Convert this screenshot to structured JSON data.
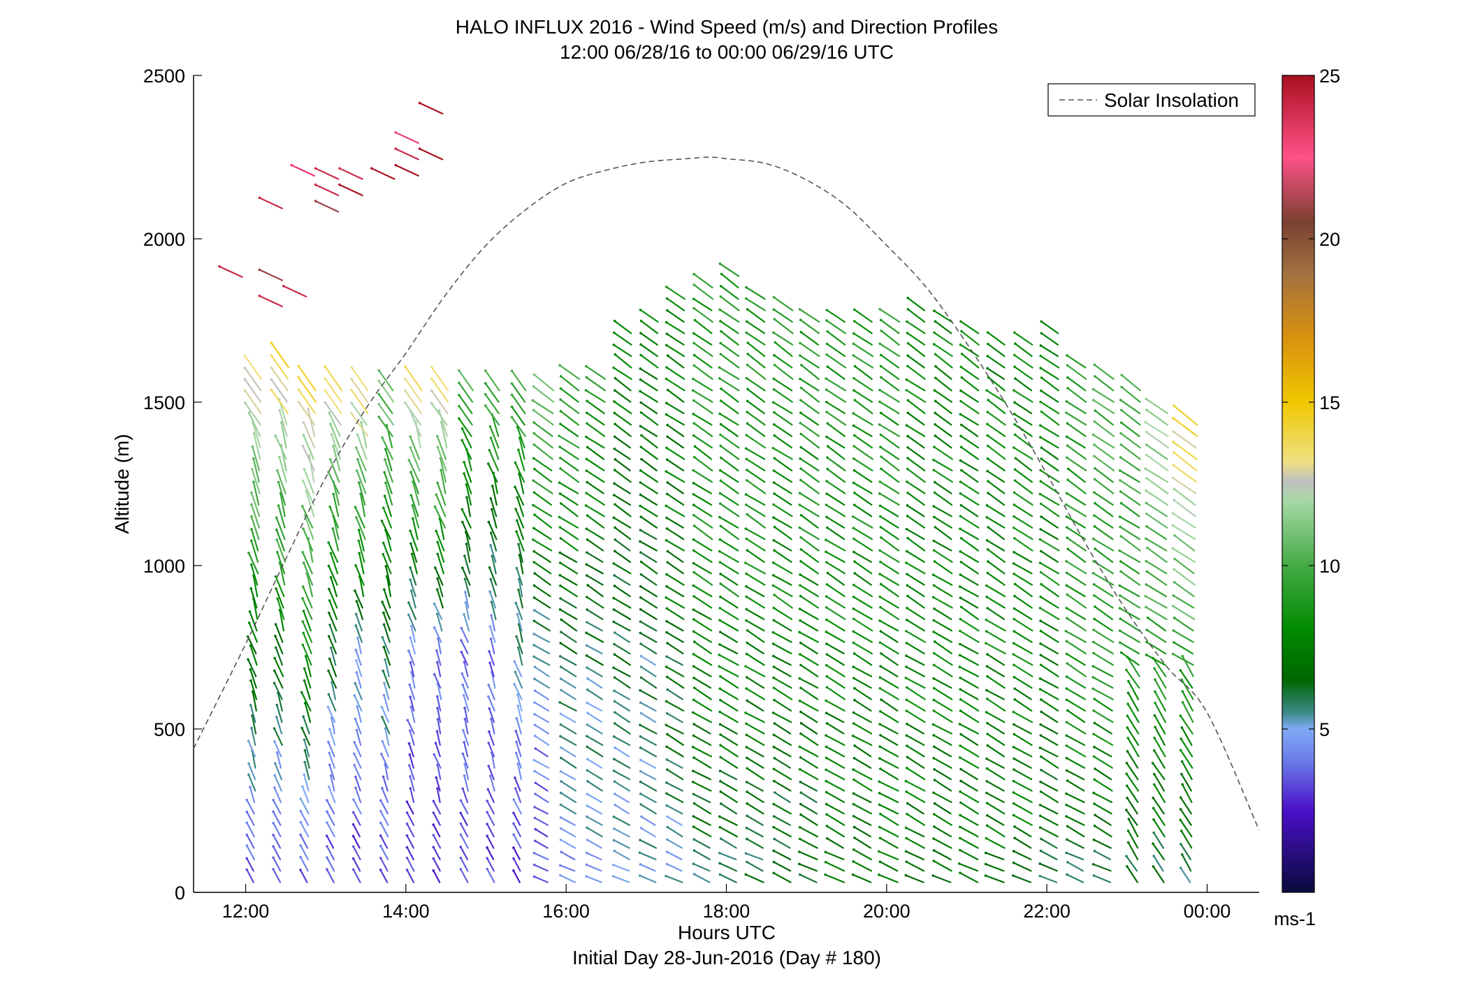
{
  "chart_data": {
    "type": "wind-barb-profile",
    "title": "HALO INFLUX 2016 - Wind Speed (m/s) and Direction Profiles",
    "subtitle": "12:00 06/28/16 to 00:00 06/29/16  UTC",
    "xlabel": "Hours UTC",
    "xlabel2": "Initial Day 28-Jun-2016 (Day # 180)",
    "ylabel": "Altitude (m)",
    "xlim": [
      11.35,
      24.65
    ],
    "ylim": [
      0,
      2500
    ],
    "x_ticks": [
      12,
      14,
      16,
      18,
      20,
      22,
      24
    ],
    "x_tick_labels": [
      "12:00",
      "14:00",
      "16:00",
      "18:00",
      "20:00",
      "22:00",
      "00:00"
    ],
    "y_ticks": [
      0,
      500,
      1000,
      1500,
      2000,
      2500
    ],
    "y_tick_labels": [
      "0",
      "500",
      "1000",
      "1500",
      "2000",
      "2500"
    ],
    "legend": {
      "label": "Solar Insolation",
      "position": "top-right"
    },
    "colorbar": {
      "label": "ms-1",
      "range": [
        0,
        25
      ],
      "ticks": [
        5,
        10,
        15,
        20,
        25
      ],
      "tick_labels": [
        "5",
        "10",
        "15",
        "20",
        "25"
      ],
      "stops": [
        {
          "v": 0,
          "c": "#0a0a3c"
        },
        {
          "v": 2.5,
          "c": "#4a10c8"
        },
        {
          "v": 4,
          "c": "#6a7ae8"
        },
        {
          "v": 5,
          "c": "#80aaf5"
        },
        {
          "v": 5.5,
          "c": "#3c8a8a"
        },
        {
          "v": 6.5,
          "c": "#006600"
        },
        {
          "v": 8,
          "c": "#008a00"
        },
        {
          "v": 10,
          "c": "#44aa44"
        },
        {
          "v": 12,
          "c": "#a8d8a8"
        },
        {
          "v": 12.6,
          "c": "#c0c0c0"
        },
        {
          "v": 13.2,
          "c": "#f0e080"
        },
        {
          "v": 15,
          "c": "#f0c800"
        },
        {
          "v": 17,
          "c": "#d89010"
        },
        {
          "v": 19,
          "c": "#a07040"
        },
        {
          "v": 20.5,
          "c": "#7a4030"
        },
        {
          "v": 22.5,
          "c": "#ff5088"
        },
        {
          "v": 25,
          "c": "#aa1020"
        }
      ]
    },
    "solar_insolation_curve": {
      "x": [
        11.35,
        12.0,
        12.5,
        13.0,
        13.5,
        14.0,
        14.5,
        15.0,
        15.5,
        16.0,
        16.5,
        17.0,
        17.5,
        17.8,
        18.0,
        18.5,
        19.0,
        19.5,
        20.0,
        20.5,
        21.0,
        21.5,
        22.0,
        22.5,
        23.0,
        23.5,
        24.0,
        24.65
      ],
      "y": [
        440,
        760,
        1020,
        1270,
        1480,
        1650,
        1830,
        1980,
        2090,
        2170,
        2210,
        2235,
        2245,
        2250,
        2245,
        2230,
        2180,
        2100,
        1980,
        1850,
        1680,
        1490,
        1280,
        1060,
        860,
        690,
        550,
        190
      ]
    },
    "profiles": {
      "times": [
        12.0,
        12.33,
        12.67,
        13.0,
        13.33,
        13.67,
        14.0,
        14.33,
        14.67,
        15.0,
        15.33,
        15.67,
        16.0,
        16.33,
        16.67,
        17.0,
        17.33,
        17.67,
        18.0,
        18.33,
        18.67,
        19.0,
        19.33,
        19.67,
        20.0,
        20.33,
        20.67,
        21.0,
        21.33,
        21.67,
        22.0,
        22.33,
        22.67,
        23.0,
        23.33,
        23.67
      ],
      "top_m": [
        1580,
        1610,
        1560,
        1570,
        1550,
        1550,
        1570,
        1560,
        1550,
        1560,
        1550,
        1540,
        1580,
        1600,
        1720,
        1760,
        1820,
        1860,
        1900,
        1850,
        1800,
        1760,
        1760,
        1760,
        1780,
        1800,
        1760,
        1720,
        1700,
        1680,
        1720,
        1620,
        1580,
        1560,
        1500,
        1450
      ],
      "speeds_low_mid_high": [
        [
          3,
          7,
          13
        ],
        [
          3,
          7,
          14
        ],
        [
          3,
          8,
          14
        ],
        [
          3,
          6,
          14
        ],
        [
          3,
          5,
          14
        ],
        [
          3,
          6,
          11
        ],
        [
          3,
          4,
          14
        ],
        [
          3,
          4,
          14
        ],
        [
          3,
          4,
          10
        ],
        [
          3,
          4,
          10
        ],
        [
          3,
          5,
          10
        ],
        [
          3,
          5,
          11
        ],
        [
          4,
          6,
          10
        ],
        [
          5,
          6,
          9
        ],
        [
          5,
          6,
          8
        ],
        [
          5,
          6,
          8
        ],
        [
          5,
          7,
          8
        ],
        [
          6,
          8,
          9
        ],
        [
          6,
          8,
          9
        ],
        [
          6,
          8,
          9
        ],
        [
          6,
          8,
          9
        ],
        [
          6,
          8,
          9
        ],
        [
          7,
          8,
          9
        ],
        [
          7,
          8,
          9
        ],
        [
          7,
          8,
          9
        ],
        [
          7,
          8,
          8
        ],
        [
          7,
          8,
          8
        ],
        [
          7,
          8,
          8
        ],
        [
          7,
          8,
          8
        ],
        [
          7,
          8,
          8
        ],
        [
          6,
          8,
          8
        ],
        [
          6,
          9,
          9
        ],
        [
          6,
          9,
          10
        ],
        [
          6,
          9,
          10
        ],
        [
          6,
          9,
          12
        ],
        [
          6,
          9,
          14
        ]
      ]
    },
    "upper_layer_barbs": {
      "x": [
        11.8,
        12.3,
        12.3,
        12.3,
        12.6,
        12.7,
        12.7,
        13.0,
        13.0,
        13.0,
        13.3,
        13.3,
        13.7,
        14.0,
        14.0,
        14.0,
        14.3,
        14.3
      ],
      "y": [
        1900,
        1890,
        1810,
        2110,
        1840,
        2210,
        2210,
        2200,
        2150,
        2100,
        2200,
        2150,
        2200,
        2310,
        2260,
        2210,
        2260,
        2400
      ],
      "speed": [
        24,
        21,
        24,
        24,
        24,
        23,
        23,
        24,
        24,
        21,
        24,
        25,
        25,
        23,
        24,
        25,
        25,
        25
      ]
    }
  }
}
